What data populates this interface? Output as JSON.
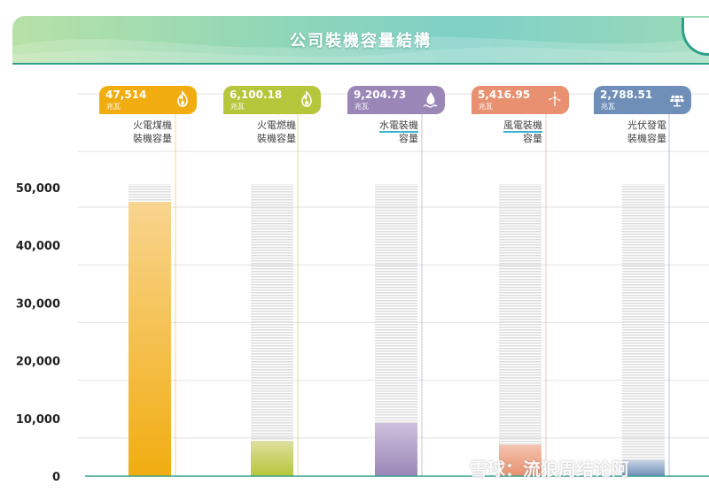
{
  "header": {
    "title": "公司裝機容量結構"
  },
  "chart_data": {
    "type": "bar",
    "categories": [
      "火電煤機裝機容量",
      "火電燃機裝機容量",
      "水電裝機容量",
      "風電裝機容量",
      "光伏發電裝機容量"
    ],
    "values": [
      47514,
      6100.18,
      9204.73,
      5416.95,
      2788.51
    ],
    "value_labels": [
      "47,514",
      "6,100.18",
      "9,204.73",
      "5,416.95",
      "2,788.51"
    ],
    "unit": "兆瓦",
    "ylim": [
      0,
      50000
    ],
    "y_ticks": [
      0,
      10000,
      20000,
      30000,
      40000,
      50000
    ],
    "y_tick_labels": [
      "0",
      "10,000",
      "20,000",
      "30,000",
      "40,000",
      "50,000"
    ],
    "grid": true,
    "colors": [
      "#f1ad10",
      "#b6c63a",
      "#9b86b8",
      "#e8906f",
      "#6f8fb8"
    ]
  },
  "cards": [
    {
      "label_lines": [
        "火電煤機",
        "裝機容量"
      ],
      "icon": "flame-icon"
    },
    {
      "label_lines": [
        "火電燃機",
        "裝機容量"
      ],
      "icon": "flame-icon"
    },
    {
      "label_lines": [
        "水電裝機",
        "容量"
      ],
      "icon": "water-drop-icon"
    },
    {
      "label_lines": [
        "風電裝機",
        "容量"
      ],
      "icon": "wind-turbine-icon"
    },
    {
      "label_lines": [
        "光伏發電",
        "裝機容量"
      ],
      "icon": "solar-panel-icon"
    }
  ],
  "watermark": "雪球：流狼周结论阿"
}
